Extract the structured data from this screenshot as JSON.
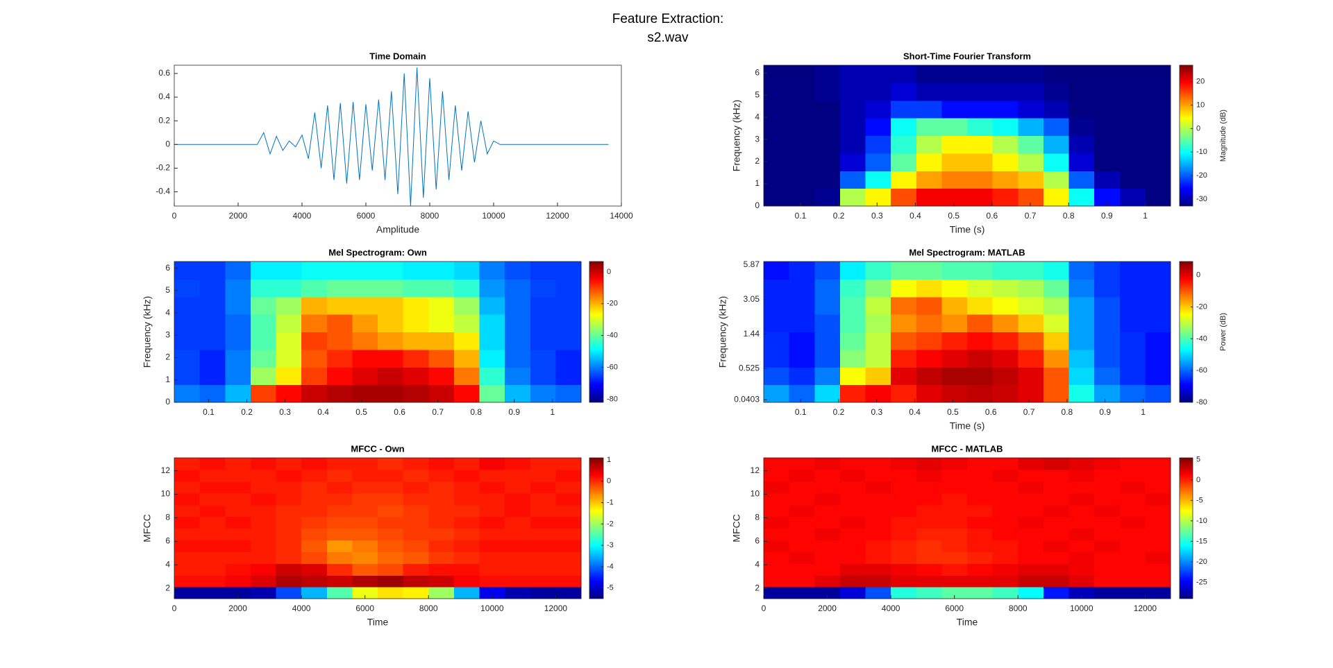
{
  "title_lines": [
    "Feature Extraction:",
    "s2.wav"
  ],
  "chart_data": [
    {
      "type": "line",
      "title": "Time Domain",
      "xlabel": "Amplitude",
      "color": "#0072bd",
      "x": [
        0,
        200,
        400,
        600,
        800,
        1000,
        1200,
        1400,
        1600,
        1800,
        2000,
        2200,
        2400,
        2600,
        2800,
        3000,
        3200,
        3400,
        3600,
        3800,
        4000,
        4200,
        4400,
        4600,
        4800,
        5000,
        5200,
        5400,
        5600,
        5800,
        6000,
        6200,
        6400,
        6600,
        6800,
        7000,
        7200,
        7400,
        7600,
        7800,
        8000,
        8200,
        8400,
        8600,
        8800,
        9000,
        9200,
        9400,
        9600,
        9800,
        10000,
        10200,
        10400,
        10600,
        10800,
        11000,
        11200,
        11400,
        11600,
        11800,
        12000,
        12200,
        12400,
        12600,
        12800,
        13000,
        13200,
        13400,
        13600
      ],
      "values": [
        0,
        0,
        0,
        0,
        0,
        0,
        0,
        0,
        0,
        0,
        0,
        0,
        0,
        0,
        0.1,
        -0.08,
        0.07,
        -0.05,
        0.03,
        -0.02,
        0.08,
        -0.12,
        0.27,
        -0.2,
        0.33,
        -0.3,
        0.35,
        -0.33,
        0.36,
        -0.3,
        0.34,
        -0.22,
        0.38,
        -0.3,
        0.45,
        -0.42,
        0.6,
        -0.52,
        0.65,
        -0.45,
        0.56,
        -0.38,
        0.45,
        -0.3,
        0.33,
        -0.22,
        0.28,
        -0.15,
        0.2,
        -0.08,
        0.03,
        0,
        0,
        0,
        0,
        0,
        0,
        0,
        0,
        0,
        0,
        0,
        0,
        0,
        0,
        0,
        0,
        0,
        0
      ],
      "xlim": [
        0,
        14000
      ],
      "xticks": [
        0,
        2000,
        4000,
        6000,
        8000,
        10000,
        12000,
        14000
      ],
      "ylim": [
        -0.52,
        0.67
      ],
      "yticks": [
        -0.4,
        -0.2,
        0,
        0.2,
        0.4,
        0.6
      ]
    },
    {
      "type": "heatmap",
      "title": "Short-Time Fourier Transform",
      "xlabel": "Time (s)",
      "ylabel": "Frequency (kHz)",
      "clabel": "Magnitude (dB)",
      "colormap": "jet",
      "xlim": [
        0.004,
        1.066
      ],
      "xticks": [
        0.1,
        0.2,
        0.3,
        0.4,
        0.5,
        0.6,
        0.7,
        0.8,
        0.9,
        1
      ],
      "ylim": [
        0,
        6.35
      ],
      "yticks": [
        0,
        1,
        2,
        3,
        4,
        5,
        6
      ],
      "clim": [
        -33,
        27
      ],
      "cticks": [
        -30,
        -20,
        -10,
        0,
        10,
        20
      ],
      "z": [
        [
          -33,
          -33,
          -32,
          0,
          5,
          15,
          20,
          20,
          20,
          18,
          15,
          5,
          -10,
          -25,
          -30,
          -33
        ],
        [
          -33,
          -33,
          -33,
          -20,
          -10,
          5,
          10,
          12,
          12,
          10,
          8,
          0,
          -20,
          -30,
          -33,
          -33
        ],
        [
          -33,
          -33,
          -33,
          -28,
          -20,
          -5,
          5,
          8,
          8,
          5,
          0,
          -10,
          -28,
          -33,
          -33,
          -33
        ],
        [
          -33,
          -33,
          -33,
          -30,
          -22,
          -8,
          0,
          5,
          5,
          0,
          -5,
          -15,
          -30,
          -33,
          -33,
          -33
        ],
        [
          -33,
          -33,
          -33,
          -30,
          -25,
          -10,
          -5,
          -5,
          -8,
          -10,
          -15,
          -20,
          -32,
          -33,
          -33,
          -33
        ],
        [
          -33,
          -33,
          -33,
          -30,
          -28,
          -22,
          -22,
          -25,
          -25,
          -25,
          -28,
          -30,
          -33,
          -33,
          -33,
          -33
        ],
        [
          -33,
          -33,
          -32,
          -30,
          -30,
          -28,
          -30,
          -30,
          -30,
          -30,
          -30,
          -32,
          -33,
          -33,
          -33,
          -33
        ],
        [
          -33,
          -33,
          -32,
          -30,
          -30,
          -30,
          -32,
          -32,
          -32,
          -32,
          -32,
          -33,
          -33,
          -33,
          -33,
          -33
        ]
      ]
    },
    {
      "type": "heatmap",
      "title": "Mel Spectrogram: Own",
      "ylabel": "Frequency (kHz)",
      "colormap": "jet",
      "xlim": [
        0.01,
        1.075
      ],
      "xticks": [
        0.1,
        0.2,
        0.3,
        0.4,
        0.5,
        0.6,
        0.7,
        0.8,
        0.9,
        1
      ],
      "ylim": [
        0,
        6.3
      ],
      "yticks": [
        0,
        1,
        2,
        3,
        4,
        5,
        6
      ],
      "clim": [
        -82,
        6.5
      ],
      "cticks": [
        -80,
        -60,
        -40,
        -20,
        0
      ],
      "z": [
        [
          -60,
          -62,
          -55,
          -10,
          -5,
          0,
          2,
          3,
          3,
          2,
          0,
          -5,
          -40,
          -55,
          -60,
          -62
        ],
        [
          -65,
          -68,
          -60,
          -35,
          -25,
          -10,
          -5,
          -2,
          0,
          -2,
          -5,
          -15,
          -45,
          -60,
          -65,
          -68
        ],
        [
          -65,
          -68,
          -60,
          -40,
          -30,
          -12,
          -8,
          -5,
          -5,
          -8,
          -12,
          -20,
          -50,
          -62,
          -65,
          -68
        ],
        [
          -66,
          -66,
          -62,
          -42,
          -30,
          -10,
          -12,
          -15,
          -18,
          -20,
          -20,
          -25,
          -52,
          -62,
          -66,
          -66
        ],
        [
          -66,
          -66,
          -62,
          -42,
          -32,
          -15,
          -12,
          -18,
          -22,
          -25,
          -28,
          -32,
          -52,
          -62,
          -66,
          -66
        ],
        [
          -66,
          -66,
          -60,
          -40,
          -35,
          -20,
          -22,
          -22,
          -22,
          -25,
          -28,
          -35,
          -55,
          -62,
          -66,
          -66
        ],
        [
          -65,
          -66,
          -60,
          -45,
          -45,
          -42,
          -40,
          -40,
          -40,
          -42,
          -42,
          -45,
          -58,
          -62,
          -65,
          -66
        ],
        [
          -66,
          -66,
          -62,
          -50,
          -50,
          -48,
          -48,
          -48,
          -48,
          -50,
          -50,
          -52,
          -60,
          -64,
          -66,
          -66
        ]
      ]
    },
    {
      "type": "heatmap",
      "title": "Mel Spectrogram: MATLAB",
      "xlabel": "Time (s)",
      "ylabel": "Frequency (kHz)",
      "clabel": "Power (dB)",
      "colormap": "jet",
      "yscale": "mel",
      "xlim": [
        0.003,
        1.072
      ],
      "xticks": [
        0.1,
        0.2,
        0.3,
        0.4,
        0.5,
        0.6,
        0.7,
        0.8,
        0.9,
        1
      ],
      "ylim": [
        0.01,
        6.23
      ],
      "yticks": [
        0.0403,
        0.525,
        1.44,
        3.05,
        5.87
      ],
      "clim": [
        -80,
        8.6
      ],
      "cticks": [
        -80,
        -60,
        -40,
        -20,
        0
      ],
      "z": [
        [
          -55,
          -60,
          -50,
          -5,
          -2,
          -5,
          0,
          2,
          3,
          2,
          0,
          -10,
          -45,
          -55,
          -60,
          -62
        ],
        [
          -62,
          -65,
          -58,
          -25,
          -20,
          0,
          3,
          5,
          5,
          3,
          0,
          -10,
          -50,
          -60,
          -65,
          -68
        ],
        [
          -65,
          -68,
          -62,
          -35,
          -30,
          -5,
          -2,
          0,
          2,
          0,
          -5,
          -15,
          -52,
          -62,
          -65,
          -68
        ],
        [
          -65,
          -68,
          -62,
          -38,
          -30,
          -10,
          -8,
          -5,
          -3,
          -5,
          -10,
          -20,
          -55,
          -62,
          -65,
          -68
        ],
        [
          -66,
          -66,
          -62,
          -40,
          -32,
          -15,
          -12,
          -15,
          -10,
          -15,
          -20,
          -28,
          -55,
          -62,
          -66,
          -66
        ],
        [
          -66,
          -66,
          -60,
          -40,
          -30,
          -12,
          -10,
          -18,
          -22,
          -25,
          -28,
          -32,
          -55,
          -62,
          -66,
          -66
        ],
        [
          -66,
          -66,
          -60,
          -42,
          -35,
          -25,
          -22,
          -25,
          -28,
          -30,
          -32,
          -38,
          -58,
          -64,
          -66,
          -66
        ],
        [
          -68,
          -66,
          -62,
          -48,
          -42,
          -38,
          -38,
          -40,
          -40,
          -42,
          -42,
          -45,
          -60,
          -64,
          -66,
          -66
        ]
      ]
    },
    {
      "type": "heatmap",
      "title": "MFCC - Own",
      "xlabel": "Time",
      "ylabel": "MFCC",
      "colormap": "jet",
      "xlim": [
        0,
        12800
      ],
      "xticks": [
        0,
        2000,
        4000,
        6000,
        8000,
        10000,
        12000
      ],
      "ylim": [
        1.13,
        13.1
      ],
      "yticks": [
        2,
        4,
        6,
        8,
        10,
        12
      ],
      "clim": [
        -5.5,
        1.1
      ],
      "cticks": [
        -5,
        -4,
        -3,
        -2,
        -1,
        0,
        1
      ],
      "z": [
        [
          -5.3,
          -5.3,
          -5.3,
          -5.2,
          -4.2,
          -3.5,
          -2.5,
          -1.5,
          -1.2,
          -1.3,
          -2,
          -3.5,
          -4.8,
          -5.2,
          -5.3,
          -5.3
        ],
        [
          0.2,
          0.2,
          0.3,
          0.5,
          0.8,
          0.7,
          0.6,
          0.8,
          0.9,
          0.7,
          0.6,
          0.3,
          0.2,
          0.2,
          0.2,
          0.2
        ],
        [
          0.1,
          0.1,
          0.2,
          0.3,
          0.6,
          0.5,
          0,
          -0.3,
          -0.2,
          0.1,
          0.2,
          0.2,
          0.1,
          0.1,
          0.1,
          0.1
        ],
        [
          0.1,
          0.1,
          0.1,
          0.1,
          0,
          -0.2,
          -0.5,
          -0.6,
          -0.4,
          -0.3,
          -0.1,
          0,
          0.1,
          0.1,
          0.1,
          0.1
        ],
        [
          0.2,
          0.2,
          0.2,
          0.1,
          0,
          -0.3,
          -0.7,
          -0.5,
          -0.3,
          -0.2,
          0,
          0.1,
          0.2,
          0.2,
          0.2,
          0.2
        ],
        [
          0.1,
          0.1,
          0.1,
          0.1,
          0,
          -0.2,
          -0.3,
          -0.3,
          -0.2,
          -0.1,
          -0.1,
          0,
          0.1,
          0.1,
          0.1,
          0.1
        ],
        [
          0.2,
          0.1,
          0.2,
          0.1,
          0,
          -0.1,
          -0.2,
          -0.2,
          -0.1,
          -0.1,
          0,
          0.1,
          0.2,
          0.1,
          0.2,
          0.2
        ],
        [
          0.1,
          0.2,
          0.1,
          0.1,
          0,
          0,
          -0.1,
          -0.1,
          -0.2,
          -0.1,
          0,
          0,
          0.1,
          0.2,
          0.1,
          0.1
        ],
        [
          0.2,
          0.1,
          0.1,
          0.2,
          0.1,
          0,
          0,
          -0.1,
          -0.1,
          0,
          0,
          0.1,
          0.1,
          0.2,
          0.1,
          0.2
        ],
        [
          0.1,
          0.2,
          0.2,
          0.1,
          0.1,
          0,
          0.1,
          0,
          0,
          0.1,
          0,
          0.1,
          0.2,
          0.1,
          0.2,
          0.1
        ],
        [
          0.2,
          0.1,
          0.1,
          0.1,
          0.2,
          0.1,
          0,
          0.1,
          0.1,
          0,
          0.1,
          0.2,
          0.1,
          0.1,
          0.1,
          0.2
        ],
        [
          0.1,
          0.2,
          0.1,
          0.2,
          0.1,
          0.2,
          0.1,
          0.1,
          0,
          0.1,
          0.2,
          0.1,
          0.3,
          0.2,
          0.1,
          0.1
        ]
      ]
    },
    {
      "type": "heatmap",
      "title": "MFCC - MATLAB",
      "xlabel": "Time",
      "ylabel": "MFCC",
      "colormap": "jet",
      "xlim": [
        0,
        12800
      ],
      "xticks": [
        0,
        2000,
        4000,
        6000,
        8000,
        10000,
        12000
      ],
      "ylim": [
        1.13,
        13.1
      ],
      "yticks": [
        2,
        4,
        6,
        8,
        10,
        12
      ],
      "clim": [
        -29,
        5.4
      ],
      "cticks": [
        -25,
        -20,
        -15,
        -10,
        -5,
        0,
        5
      ],
      "z": [
        [
          -28,
          -28,
          -28,
          -26,
          -22,
          -15,
          -14,
          -13,
          -13,
          -14,
          -16,
          -24,
          -27,
          -28,
          -28,
          -28
        ],
        [
          1,
          1,
          2,
          3,
          3,
          2,
          2,
          2,
          2,
          2,
          3,
          3,
          2,
          1,
          1,
          1
        ],
        [
          1,
          1,
          1,
          2,
          2,
          1.5,
          1,
          0.5,
          1,
          1.5,
          2,
          2,
          1.5,
          1,
          1,
          1
        ],
        [
          1,
          1.5,
          1,
          1,
          0.5,
          0,
          -0.5,
          -0.5,
          0,
          0.5,
          1,
          1,
          1.5,
          1,
          1,
          1.5
        ],
        [
          1.5,
          1,
          1,
          1,
          0.5,
          0,
          -0.5,
          0,
          0.5,
          0.5,
          1,
          1.5,
          1,
          1.5,
          1,
          1
        ],
        [
          1,
          1,
          1.5,
          1,
          1,
          0.5,
          0,
          0,
          0.5,
          1,
          1,
          1,
          1.5,
          1,
          1,
          1
        ],
        [
          1.5,
          1,
          1,
          1.5,
          1,
          0.5,
          0.5,
          0.5,
          1,
          1,
          1.5,
          1,
          1,
          1,
          1.5,
          1
        ],
        [
          1,
          1.5,
          1,
          1,
          1,
          1,
          0.5,
          0.5,
          0.5,
          1,
          1,
          1.5,
          1,
          1.5,
          1,
          1
        ],
        [
          1,
          1,
          1.5,
          1,
          1,
          1,
          1,
          0.5,
          1,
          1,
          1,
          1,
          1.5,
          1,
          1,
          1.5
        ],
        [
          1.5,
          1,
          1,
          1,
          1.5,
          1,
          1,
          1,
          1,
          1,
          1.5,
          1,
          1,
          1,
          1.5,
          1
        ],
        [
          1,
          1.5,
          1,
          1.5,
          1,
          1,
          1.5,
          1,
          1,
          1.5,
          1,
          1,
          1.5,
          1,
          1,
          1
        ],
        [
          1,
          1,
          1.5,
          1,
          1,
          1.5,
          2,
          1.5,
          1,
          1,
          2,
          2.5,
          2,
          1.5,
          1,
          1
        ]
      ]
    }
  ]
}
